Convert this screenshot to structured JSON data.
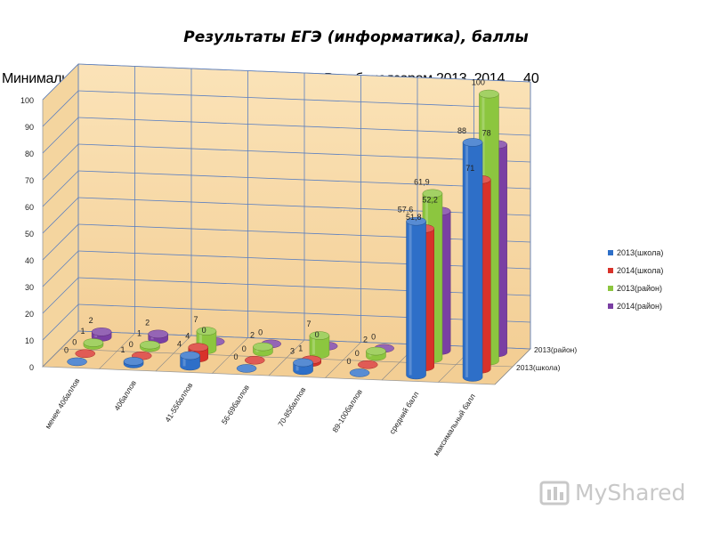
{
  "title": "Результаты ЕГЭ (информатика), баллы",
  "subtitle": "Минимальное количество баллов, установленное Рособрнадзором 2013, 2014",
  "subtitle_value": "40",
  "logo": "MyShared",
  "colors": {
    "wall": "#f6d7a4",
    "floor": "#f3ce94",
    "grid": "#5b7fc0",
    "series": [
      "#2e6fc8",
      "#d8322a",
      "#8cc63f",
      "#7a3fa3"
    ]
  },
  "chart_data": {
    "type": "bar",
    "title": "",
    "categories": [
      "менее 40баллов",
      "40баллов",
      "41-55баллов",
      "56-69баллов",
      "70-85баллов",
      "89-100баллов",
      "средний балл",
      "максимальный балл"
    ],
    "depth_labels": [
      "2013(школа)",
      "2013(район)"
    ],
    "ylim": [
      0,
      100
    ],
    "yticks": [
      0,
      10,
      20,
      30,
      40,
      50,
      60,
      70,
      80,
      90,
      100
    ],
    "legend_position": "right",
    "series": [
      {
        "name": "2013(школа)",
        "values": [
          0,
          1,
          4,
          0,
          3,
          0,
          57.6,
          88
        ],
        "labels": [
          "0",
          "1",
          "4",
          "0",
          "3",
          "0",
          "57,6",
          "88"
        ]
      },
      {
        "name": "2014(школа)",
        "values": [
          0,
          0,
          4,
          0,
          1,
          0,
          51.8,
          71
        ],
        "labels": [
          "0",
          "0",
          "4",
          "0",
          "1",
          "0",
          "51,8",
          "71"
        ]
      },
      {
        "name": "2013(район)",
        "values": [
          1,
          1,
          7,
          2,
          7,
          2,
          61.9,
          100
        ],
        "labels": [
          "1",
          "1",
          "7",
          "2",
          "7",
          "2",
          "61,9",
          "100"
        ]
      },
      {
        "name": "2014(район)",
        "values": [
          2,
          2,
          0,
          0,
          0,
          0,
          52.2,
          78
        ],
        "labels": [
          "2",
          "2",
          "0",
          "0",
          "0",
          "0",
          "52,2",
          "78"
        ]
      }
    ]
  }
}
